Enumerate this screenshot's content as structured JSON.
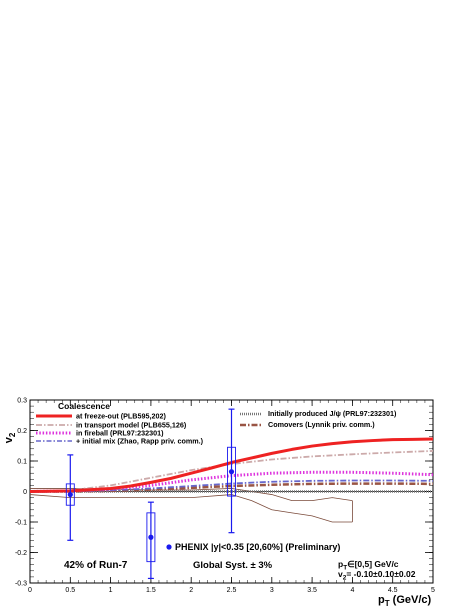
{
  "chart_data": {
    "type": "line",
    "xlabel": "p_T (GeV/c)",
    "xlabel_main": "p",
    "xlabel_sub": "T",
    "xlabel_unit": " (GeV/c)",
    "ylabel": "v_2",
    "ylabel_main": "v",
    "ylabel_sub": "2",
    "xlim": [
      0,
      5
    ],
    "ylim": [
      -0.3,
      0.3
    ],
    "x_ticks": [
      0,
      0.5,
      1,
      1.5,
      2,
      2.5,
      3,
      3.5,
      4,
      4.5,
      5
    ],
    "x_tick_labels": [
      "0",
      "0.5",
      "1",
      "1.5",
      "2",
      "2.5",
      "3",
      "3.5",
      "4",
      "4.5",
      "5"
    ],
    "y_ticks": [
      -0.3,
      -0.2,
      -0.1,
      0,
      0.1,
      0.2,
      0.3
    ],
    "y_tick_labels": [
      "-0.3",
      "-0.2",
      "-0.1",
      "0",
      "0.1",
      "0.2",
      "0.3"
    ],
    "grid": false,
    "legend_placement": "top",
    "legend_heading": "Coalescence",
    "series": [
      {
        "name": "at freeze-out (PLB595,202)",
        "color": "#ee2222",
        "style": "solid-thick",
        "x": [
          0,
          0.5,
          1,
          1.25,
          1.5,
          1.75,
          2,
          2.25,
          2.5,
          2.75,
          3,
          3.25,
          3.5,
          3.75,
          4,
          4.25,
          4.5,
          4.75,
          5
        ],
        "y": [
          0,
          0.002,
          0.01,
          0.018,
          0.03,
          0.043,
          0.06,
          0.077,
          0.095,
          0.11,
          0.125,
          0.138,
          0.149,
          0.157,
          0.163,
          0.167,
          0.17,
          0.171,
          0.172
        ]
      },
      {
        "name": "in transport model (PLB655,126)",
        "color": "#ccaaaa",
        "style": "dash-dot",
        "x": [
          0,
          0.5,
          1,
          1.5,
          2,
          2.5,
          3,
          3.5,
          4,
          4.5,
          5
        ],
        "y": [
          0,
          0.004,
          0.02,
          0.045,
          0.07,
          0.09,
          0.105,
          0.115,
          0.122,
          0.128,
          0.133
        ]
      },
      {
        "name": "in fireball (PRL97:232301)",
        "color": "#dd33dd",
        "style": "dotted-thick",
        "x": [
          0,
          0.5,
          1,
          1.5,
          2,
          2.5,
          3,
          3.5,
          4,
          4.5,
          5
        ],
        "y": [
          0,
          0.002,
          0.008,
          0.02,
          0.038,
          0.052,
          0.06,
          0.063,
          0.063,
          0.06,
          0.055
        ]
      },
      {
        "name": "+ initial mix (Zhao, Rapp priv. comm.)",
        "color": "#6666cc",
        "style": "dash-dot",
        "x": [
          0,
          0.5,
          1,
          1.5,
          2,
          2.5,
          3,
          3.5,
          4,
          4.5,
          5
        ],
        "y": [
          0,
          0.001,
          0.004,
          0.01,
          0.018,
          0.026,
          0.032,
          0.035,
          0.036,
          0.036,
          0.035
        ]
      },
      {
        "name": "Initially produced J/ψ (PRL97:232301)",
        "color": "#777777",
        "style": "dotted",
        "x": [
          0,
          1,
          2,
          3,
          4,
          5
        ],
        "y": [
          0,
          0,
          0,
          0,
          0,
          0
        ]
      },
      {
        "name": "Comovers (Lynnik priv. comm.)",
        "color": "#995544",
        "style": "dash-dot-thick",
        "x": [
          0,
          0.5,
          1,
          1.5,
          2,
          2.5,
          3,
          3.5,
          4,
          4.5,
          5
        ],
        "y": [
          0,
          0,
          0.002,
          0.006,
          0.012,
          0.018,
          0.022,
          0.025,
          0.026,
          0.026,
          0.025
        ]
      }
    ],
    "band": {
      "color": "#7a4a3a",
      "x": [
        0,
        0.5,
        1,
        1.5,
        2,
        2.5,
        2.75,
        3,
        3.25,
        3.5,
        3.75,
        4
      ],
      "upper": [
        0.01,
        0.01,
        0.008,
        0.005,
        0.005,
        0.01,
        0.0,
        -0.01,
        -0.03,
        -0.03,
        -0.02,
        -0.03
      ],
      "lower": [
        -0.01,
        -0.02,
        -0.02,
        -0.02,
        -0.02,
        -0.01,
        -0.03,
        -0.06,
        -0.07,
        -0.08,
        -0.1,
        -0.1
      ]
    },
    "data_points": {
      "name": "PHENIX |y|<0.35 [20,60%] (Preliminary)",
      "color": "#1a1aee",
      "points": [
        {
          "x": 0.5,
          "y": -0.01,
          "stat_low": -0.16,
          "stat_high": 0.12,
          "sys_low": -0.045,
          "sys_high": 0.025
        },
        {
          "x": 1.5,
          "y": -0.15,
          "stat_low": -0.285,
          "stat_high": -0.035,
          "sys_low": -0.23,
          "sys_high": -0.07
        },
        {
          "x": 2.5,
          "y": 0.065,
          "stat_low": -0.135,
          "stat_high": 0.27,
          "sys_low": -0.015,
          "sys_high": 0.145
        }
      ]
    },
    "annotations": {
      "run": "42% of Run-7",
      "syst": "Global Syst. ± 3%",
      "pt_range_main": "p",
      "pt_range_sub": "T",
      "pt_range_rest": "∈[0,5] GeV/c",
      "v2_main": "v",
      "v2_sub": "2",
      "v2_rest": "= -0.10±0.10±0.02"
    }
  }
}
